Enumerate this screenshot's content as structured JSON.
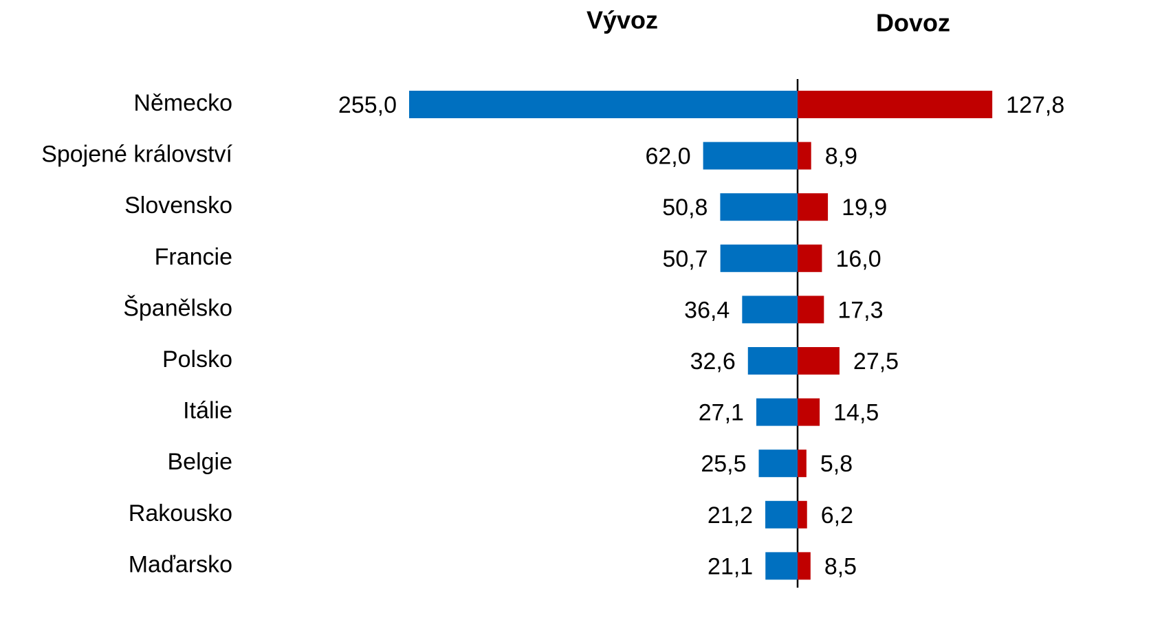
{
  "chart_data": {
    "type": "butterfly-bar",
    "categories": [
      "Německo",
      "Spojené království",
      "Slovensko",
      "Francie",
      "Španělsko",
      "Polsko",
      "Itálie",
      "Belgie",
      "Rakousko",
      "Maďarsko"
    ],
    "series": [
      {
        "name": "Vývoz",
        "color": "#0070c0",
        "values": [
          255.0,
          62.0,
          50.8,
          50.7,
          36.4,
          32.6,
          27.1,
          25.5,
          21.2,
          21.1
        ],
        "value_labels": [
          "255,0",
          "62,0",
          "50,8",
          "50,7",
          "36,4",
          "32,6",
          "27,1",
          "25,5",
          "21,2",
          "21,1"
        ]
      },
      {
        "name": "Dovoz",
        "color": "#c00000",
        "values": [
          127.8,
          8.9,
          19.9,
          16.0,
          17.3,
          27.5,
          14.5,
          5.8,
          6.2,
          8.5
        ],
        "value_labels": [
          "127,8",
          "8,9",
          "19,9",
          "16,0",
          "17,3",
          "27,5",
          "14,5",
          "5,8",
          "6,2",
          "8,5"
        ]
      }
    ]
  }
}
